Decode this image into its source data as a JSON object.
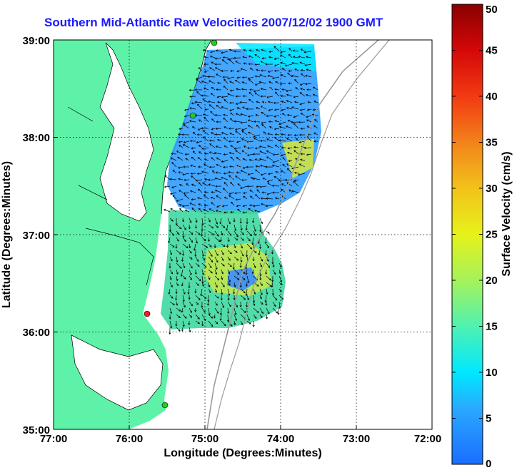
{
  "title": "Southern Mid-Atlantic Raw Velocities 2007/12/02 1900 GMT",
  "x_axis": {
    "label": "Longitude (Degrees:Minutes)",
    "ticks": [
      "77:00",
      "76:00",
      "75:00",
      "74:00",
      "73:00",
      "72:00"
    ]
  },
  "y_axis": {
    "label": "Latitude (Degrees:Minutes)",
    "ticks": [
      "39:00",
      "38:00",
      "37:00",
      "36:00",
      "35:00"
    ]
  },
  "colorbar": {
    "label": "Surface Velocity (cm/s)",
    "ticks": [
      "50",
      "45",
      "40",
      "35",
      "30",
      "25",
      "20",
      "15",
      "10",
      "5",
      "0"
    ],
    "min": 0,
    "max": 50
  },
  "colors": {
    "land": "#5ef2a8",
    "ocean": "#ffffff",
    "title": "#1a1aff",
    "bathymetry": "#9a9a9a",
    "station_active": "#22cc22",
    "station_inactive": "#ee2222"
  },
  "grid": true
}
